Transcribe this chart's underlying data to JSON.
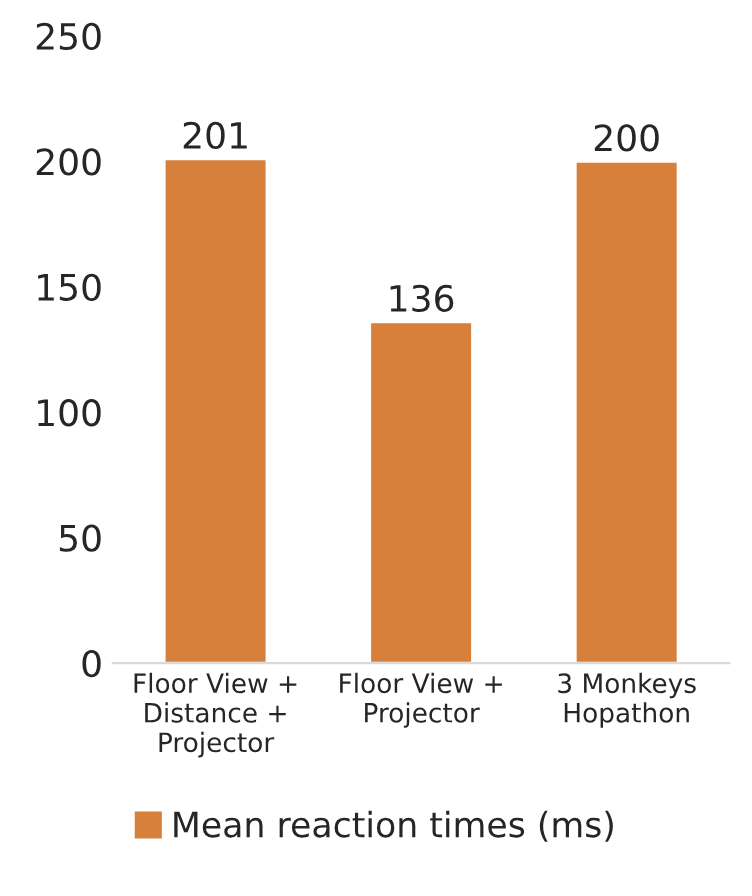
{
  "chart_data": {
    "type": "bar",
    "categories": [
      "Floor View +\nDistance +\nProjector",
      "Floor View +\nProjector",
      "3 Monkeys\nHopathon"
    ],
    "series": [
      {
        "name": "Mean reaction times (ms)",
        "color": "#d6803b",
        "values": [
          201,
          136,
          200
        ]
      }
    ],
    "ylim": [
      0,
      250
    ],
    "yticks": [
      0,
      50,
      100,
      150,
      200,
      250
    ],
    "data_labels": true,
    "legend": "bottom",
    "grid": false
  }
}
